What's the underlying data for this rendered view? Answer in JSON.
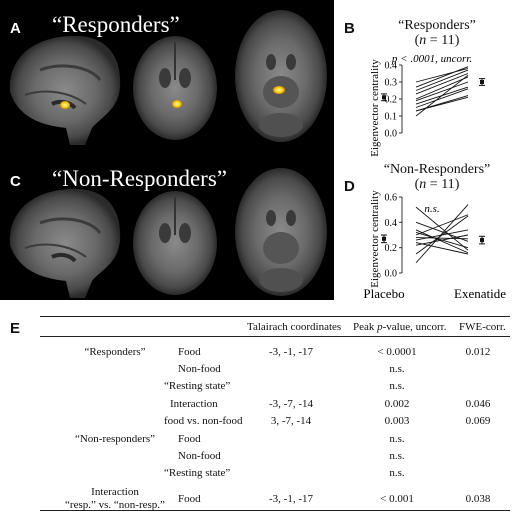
{
  "panels": {
    "A": {
      "label": "A",
      "title": "“Responders”"
    },
    "C": {
      "label": "C",
      "title": "“Non-Responders”"
    },
    "B": {
      "label": "B",
      "title_line1": "“Responders”",
      "title_n": "n",
      "title_eq": " = 11",
      "stat": "p < .0001, uncorr.",
      "ylabel": "Eigenvector centrality"
    },
    "D": {
      "label": "D",
      "title_line1": "“Non-Responders”",
      "title_n": "n",
      "title_eq": " = 11",
      "stat": "n.s.",
      "ylabel": "Eigenvector centrality"
    },
    "E": {
      "label": "E"
    }
  },
  "chart_data": [
    {
      "type": "line",
      "panel": "B",
      "ylim": [
        0,
        0.4
      ],
      "yticks": [
        "0.0",
        "0.1",
        "0.2",
        "0.3",
        "0.4"
      ],
      "categories": [
        "Placebo",
        "Exenatide"
      ],
      "means": [
        0.21,
        0.3
      ],
      "errors": [
        0.02,
        0.02
      ],
      "subjects": [
        [
          0.3,
          0.38
        ],
        [
          0.27,
          0.39
        ],
        [
          0.25,
          0.37
        ],
        [
          0.23,
          0.35
        ],
        [
          0.2,
          0.33
        ],
        [
          0.19,
          0.3
        ],
        [
          0.17,
          0.27
        ],
        [
          0.15,
          0.26
        ],
        [
          0.13,
          0.22
        ],
        [
          0.13,
          0.21
        ],
        [
          0.1,
          0.34
        ]
      ]
    },
    {
      "type": "line",
      "panel": "D",
      "ylim": [
        0,
        0.6
      ],
      "yticks": [
        "0.0",
        "0.2",
        "0.4",
        "0.6"
      ],
      "categories": [
        "Placebo",
        "Exenatide"
      ],
      "means": [
        0.27,
        0.26
      ],
      "errors": [
        0.03,
        0.03
      ],
      "subjects": [
        [
          0.52,
          0.18
        ],
        [
          0.4,
          0.25
        ],
        [
          0.34,
          0.16
        ],
        [
          0.32,
          0.2
        ],
        [
          0.3,
          0.46
        ],
        [
          0.28,
          0.27
        ],
        [
          0.26,
          0.34
        ],
        [
          0.24,
          0.15
        ],
        [
          0.22,
          0.3
        ],
        [
          0.15,
          0.45
        ],
        [
          0.08,
          0.54
        ]
      ]
    }
  ],
  "xlabels": [
    "Placebo",
    "Exenatide"
  ],
  "table": {
    "headers": [
      "Talairach coordinates",
      "Peak p-value, uncorr.",
      "FWE-corr."
    ],
    "header_peak_a": "Peak ",
    "header_peak_p": "p",
    "header_peak_b": "-value, uncorr.",
    "groups": [
      {
        "name": "“Responders”",
        "rows": [
          {
            "cond": "Food",
            "coords": "-3, -1, -17",
            "p": "< 0.0001",
            "fwe": "0.012"
          },
          {
            "cond": "Non-food",
            "coords": "",
            "p": "n.s.",
            "fwe": ""
          },
          {
            "cond": "“Resting state”",
            "coords": "",
            "p": "n.s.",
            "fwe": ""
          },
          {
            "cond": "Interaction",
            "coords": "-3, -7, -14",
            "p": "0.002",
            "fwe": "0.046"
          },
          {
            "cond": "food vs. non-food",
            "coords": "3, -7, -14",
            "p": "0.003",
            "fwe": "0.069"
          }
        ]
      },
      {
        "name": "“Non-responders”",
        "rows": [
          {
            "cond": "Food",
            "coords": "",
            "p": "n.s.",
            "fwe": ""
          },
          {
            "cond": "Non-food",
            "coords": "",
            "p": "n.s.",
            "fwe": ""
          },
          {
            "cond": "“Resting state”",
            "coords": "",
            "p": "n.s.",
            "fwe": ""
          }
        ]
      },
      {
        "name_line1": "Interaction",
        "name_line2": "“resp.” vs. “non-resp.”",
        "rows": [
          {
            "cond": "Food",
            "coords": "-3, -1, -17",
            "p": "< 0.001",
            "fwe": "0.038"
          }
        ]
      }
    ]
  }
}
